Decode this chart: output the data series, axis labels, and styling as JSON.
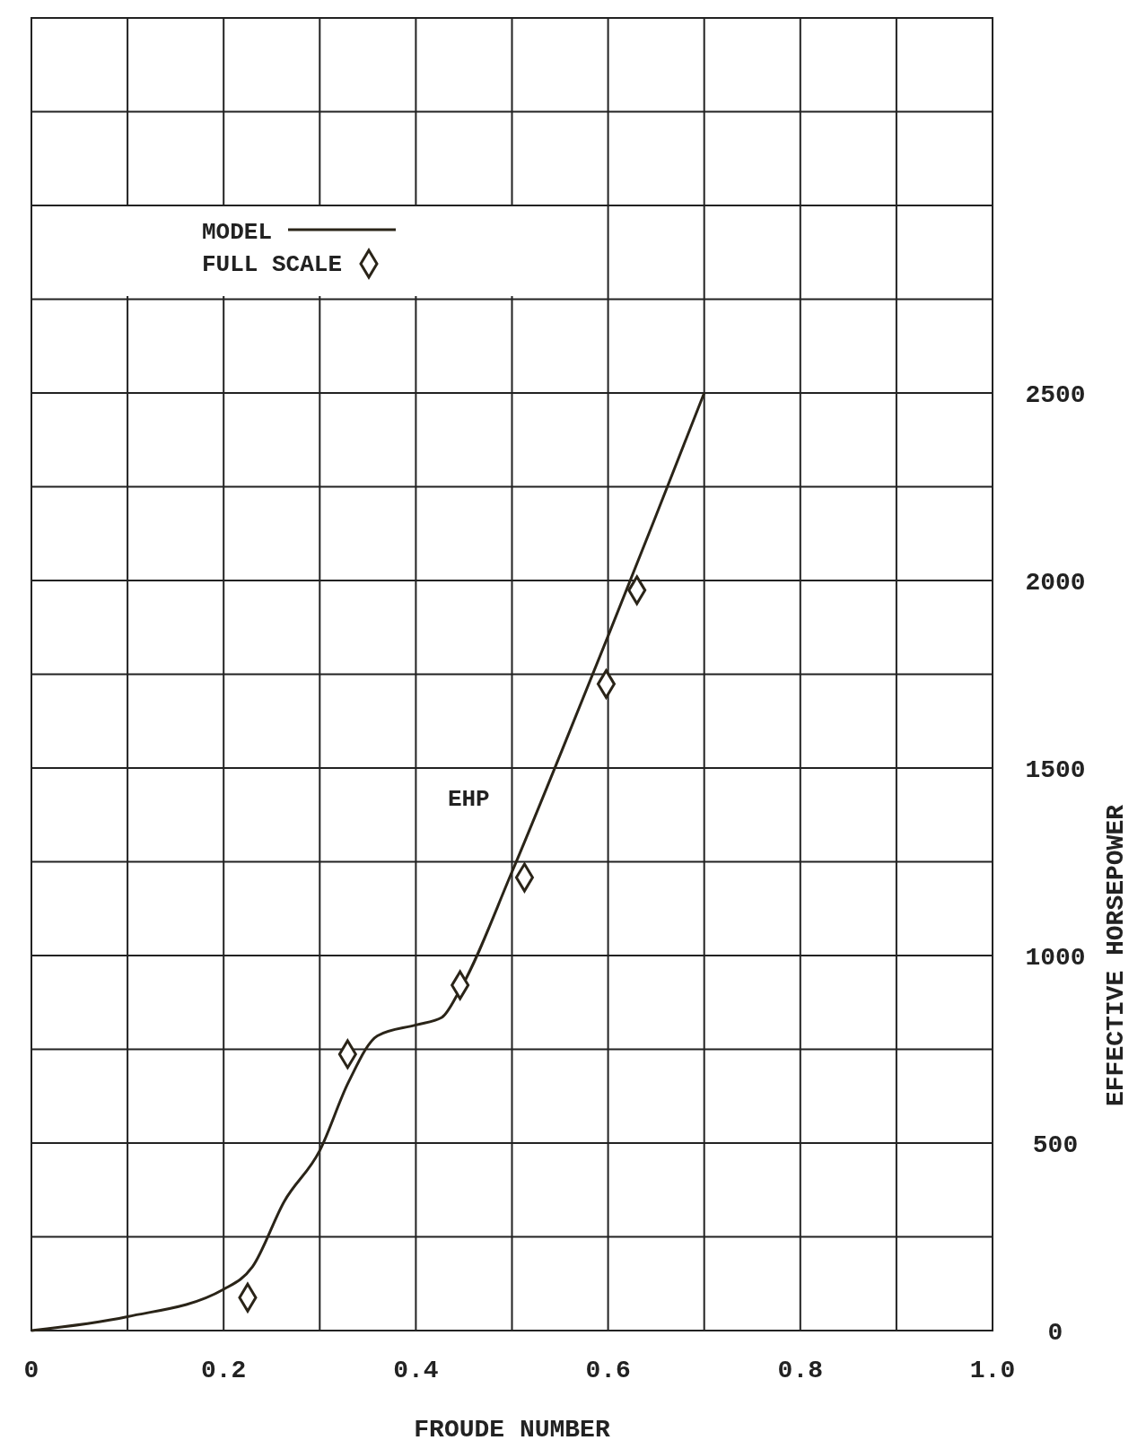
{
  "chart_data": {
    "type": "line",
    "xlabel": "FROUDE NUMBER",
    "ylabel": "EFFECTIVE HORSEPOWER",
    "xlim": [
      0,
      1
    ],
    "ylim": [
      0,
      3500
    ],
    "xticks": [
      0,
      {
        "value": 0.1,
        "label": null
      },
      0.2,
      {
        "value": 0.3,
        "label": null
      },
      0.4,
      {
        "value": 0.5,
        "label": null
      },
      0.6,
      {
        "value": 0.7,
        "label": null
      },
      0.8,
      {
        "value": 0.9,
        "label": null
      },
      {
        "value": 1,
        "label": "1.0"
      }
    ],
    "yticks": [
      0,
      {
        "value": 250,
        "label": null
      },
      500,
      {
        "value": 750,
        "label": null
      },
      1000,
      {
        "value": 1250,
        "label": null
      },
      1500,
      {
        "value": 1750,
        "label": null
      },
      2000,
      {
        "value": 2250,
        "label": null
      },
      2500,
      {
        "value": 2750,
        "label": null
      },
      {
        "value": 3000,
        "label": null
      },
      {
        "value": 3250,
        "label": null
      },
      {
        "value": 3500,
        "label": null
      }
    ],
    "grid": true,
    "legend": "top left",
    "annotations": [
      "EHP"
    ],
    "series": [
      {
        "name": "MODEL",
        "color": "#2a2418",
        "marker": "none",
        "line_style": "solid",
        "x": [
          0,
          0.1,
          0.2,
          0.23,
          0.263,
          0.3,
          0.33,
          0.36,
          0.4,
          0.427,
          0.446,
          0.5,
          0.552,
          0.6,
          0.648,
          0.7
        ],
        "values": [
          0,
          37,
          110,
          170,
          344,
          480,
          663,
          786,
          815,
          835,
          909,
          1223,
          1547,
          1852,
          2161,
          2500
        ]
      },
      {
        "name": "FULL SCALE",
        "type": "scatter",
        "color": "#2a2418",
        "marker": "diamond",
        "x": [
          0.225,
          0.329,
          0.446,
          0.513,
          0.598,
          0.63
        ],
        "values": [
          88,
          737,
          921,
          1208,
          1724,
          1974
        ]
      }
    ]
  }
}
